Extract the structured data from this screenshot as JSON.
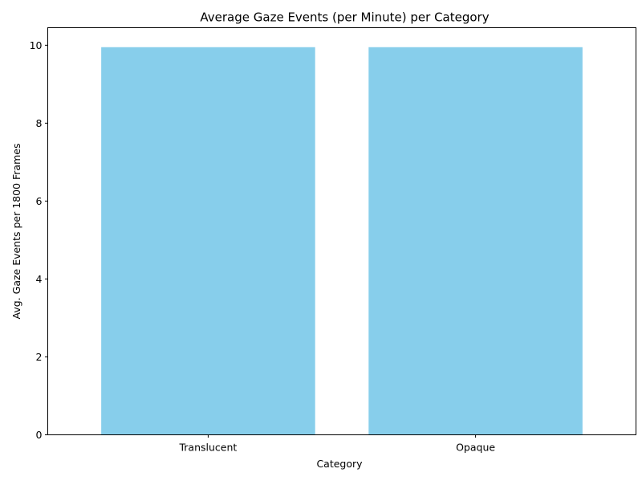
{
  "chart_data": {
    "type": "bar",
    "title": "Average Gaze Events (per Minute) per Category",
    "xlabel": "Category",
    "ylabel": "Avg. Gaze Events per 1800 Frames",
    "categories": [
      "Translucent",
      "Opaque"
    ],
    "values": [
      9.95,
      9.95
    ],
    "ylim": [
      0,
      10.45
    ],
    "yticks": [
      0,
      2,
      4,
      6,
      8,
      10
    ],
    "ytick_labels": [
      "0",
      "2",
      "4",
      "6",
      "8",
      "10"
    ],
    "bar_color": "#87CEEB",
    "grid": false,
    "legend": "none"
  }
}
